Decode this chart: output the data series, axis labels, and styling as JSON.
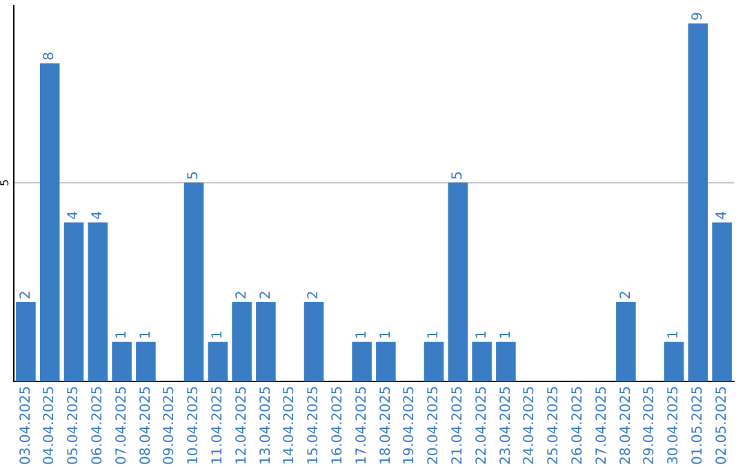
{
  "chart_data": {
    "type": "bar",
    "categories": [
      "03.04.2025",
      "04.04.2025",
      "05.04.2025",
      "06.04.2025",
      "07.04.2025",
      "08.04.2025",
      "09.04.2025",
      "10.04.2025",
      "11.04.2025",
      "12.04.2025",
      "13.04.2025",
      "14.04.2025",
      "15.04.2025",
      "16.04.2025",
      "17.04.2025",
      "18.04.2025",
      "19.04.2025",
      "20.04.2025",
      "21.04.2025",
      "22.04.2025",
      "23.04.2025",
      "24.04.2025",
      "25.04.2025",
      "26.04.2025",
      "27.04.2025",
      "28.04.2025",
      "29.04.2025",
      "30.04.2025",
      "01.05.2025",
      "02.05.2025"
    ],
    "values": [
      2,
      8,
      4,
      4,
      1,
      1,
      0,
      5,
      1,
      2,
      2,
      0,
      2,
      0,
      1,
      1,
      0,
      1,
      5,
      1,
      1,
      0,
      0,
      0,
      0,
      2,
      0,
      1,
      9,
      4
    ],
    "value_labels": [
      "2",
      "8",
      "4",
      "4",
      "1",
      "1",
      null,
      "5",
      "1",
      "2",
      "2",
      null,
      "2",
      null,
      "1",
      "1",
      null,
      "1",
      "5",
      "1",
      "1",
      null,
      null,
      null,
      null,
      "2",
      null,
      "1",
      "9",
      "4"
    ],
    "color": "#3a7dc4",
    "ylim": [
      0,
      9.45
    ],
    "yticks": [
      5
    ],
    "grid": "y",
    "legend": false
  }
}
